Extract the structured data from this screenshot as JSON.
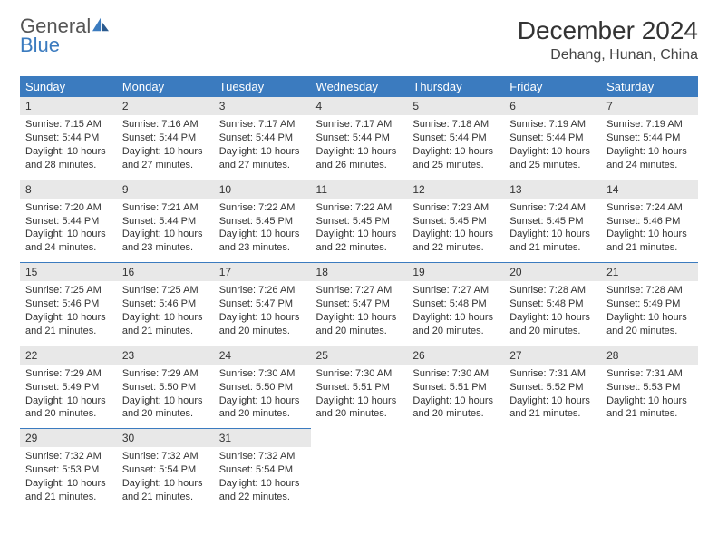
{
  "logo": {
    "text1": "General",
    "text2": "Blue"
  },
  "title": "December 2024",
  "location": "Dehang, Hunan, China",
  "colors": {
    "header_bg": "#3b7bbf",
    "header_fg": "#ffffff",
    "daynum_bg": "#e8e8e8",
    "row_border": "#3b7bbf",
    "logo_blue": "#3b7bbf",
    "logo_gray": "#555555"
  },
  "days_of_week": [
    "Sunday",
    "Monday",
    "Tuesday",
    "Wednesday",
    "Thursday",
    "Friday",
    "Saturday"
  ],
  "weeks": [
    [
      {
        "n": "1",
        "sr": "Sunrise: 7:15 AM",
        "ss": "Sunset: 5:44 PM",
        "d1": "Daylight: 10 hours",
        "d2": "and 28 minutes."
      },
      {
        "n": "2",
        "sr": "Sunrise: 7:16 AM",
        "ss": "Sunset: 5:44 PM",
        "d1": "Daylight: 10 hours",
        "d2": "and 27 minutes."
      },
      {
        "n": "3",
        "sr": "Sunrise: 7:17 AM",
        "ss": "Sunset: 5:44 PM",
        "d1": "Daylight: 10 hours",
        "d2": "and 27 minutes."
      },
      {
        "n": "4",
        "sr": "Sunrise: 7:17 AM",
        "ss": "Sunset: 5:44 PM",
        "d1": "Daylight: 10 hours",
        "d2": "and 26 minutes."
      },
      {
        "n": "5",
        "sr": "Sunrise: 7:18 AM",
        "ss": "Sunset: 5:44 PM",
        "d1": "Daylight: 10 hours",
        "d2": "and 25 minutes."
      },
      {
        "n": "6",
        "sr": "Sunrise: 7:19 AM",
        "ss": "Sunset: 5:44 PM",
        "d1": "Daylight: 10 hours",
        "d2": "and 25 minutes."
      },
      {
        "n": "7",
        "sr": "Sunrise: 7:19 AM",
        "ss": "Sunset: 5:44 PM",
        "d1": "Daylight: 10 hours",
        "d2": "and 24 minutes."
      }
    ],
    [
      {
        "n": "8",
        "sr": "Sunrise: 7:20 AM",
        "ss": "Sunset: 5:44 PM",
        "d1": "Daylight: 10 hours",
        "d2": "and 24 minutes."
      },
      {
        "n": "9",
        "sr": "Sunrise: 7:21 AM",
        "ss": "Sunset: 5:44 PM",
        "d1": "Daylight: 10 hours",
        "d2": "and 23 minutes."
      },
      {
        "n": "10",
        "sr": "Sunrise: 7:22 AM",
        "ss": "Sunset: 5:45 PM",
        "d1": "Daylight: 10 hours",
        "d2": "and 23 minutes."
      },
      {
        "n": "11",
        "sr": "Sunrise: 7:22 AM",
        "ss": "Sunset: 5:45 PM",
        "d1": "Daylight: 10 hours",
        "d2": "and 22 minutes."
      },
      {
        "n": "12",
        "sr": "Sunrise: 7:23 AM",
        "ss": "Sunset: 5:45 PM",
        "d1": "Daylight: 10 hours",
        "d2": "and 22 minutes."
      },
      {
        "n": "13",
        "sr": "Sunrise: 7:24 AM",
        "ss": "Sunset: 5:45 PM",
        "d1": "Daylight: 10 hours",
        "d2": "and 21 minutes."
      },
      {
        "n": "14",
        "sr": "Sunrise: 7:24 AM",
        "ss": "Sunset: 5:46 PM",
        "d1": "Daylight: 10 hours",
        "d2": "and 21 minutes."
      }
    ],
    [
      {
        "n": "15",
        "sr": "Sunrise: 7:25 AM",
        "ss": "Sunset: 5:46 PM",
        "d1": "Daylight: 10 hours",
        "d2": "and 21 minutes."
      },
      {
        "n": "16",
        "sr": "Sunrise: 7:25 AM",
        "ss": "Sunset: 5:46 PM",
        "d1": "Daylight: 10 hours",
        "d2": "and 21 minutes."
      },
      {
        "n": "17",
        "sr": "Sunrise: 7:26 AM",
        "ss": "Sunset: 5:47 PM",
        "d1": "Daylight: 10 hours",
        "d2": "and 20 minutes."
      },
      {
        "n": "18",
        "sr": "Sunrise: 7:27 AM",
        "ss": "Sunset: 5:47 PM",
        "d1": "Daylight: 10 hours",
        "d2": "and 20 minutes."
      },
      {
        "n": "19",
        "sr": "Sunrise: 7:27 AM",
        "ss": "Sunset: 5:48 PM",
        "d1": "Daylight: 10 hours",
        "d2": "and 20 minutes."
      },
      {
        "n": "20",
        "sr": "Sunrise: 7:28 AM",
        "ss": "Sunset: 5:48 PM",
        "d1": "Daylight: 10 hours",
        "d2": "and 20 minutes."
      },
      {
        "n": "21",
        "sr": "Sunrise: 7:28 AM",
        "ss": "Sunset: 5:49 PM",
        "d1": "Daylight: 10 hours",
        "d2": "and 20 minutes."
      }
    ],
    [
      {
        "n": "22",
        "sr": "Sunrise: 7:29 AM",
        "ss": "Sunset: 5:49 PM",
        "d1": "Daylight: 10 hours",
        "d2": "and 20 minutes."
      },
      {
        "n": "23",
        "sr": "Sunrise: 7:29 AM",
        "ss": "Sunset: 5:50 PM",
        "d1": "Daylight: 10 hours",
        "d2": "and 20 minutes."
      },
      {
        "n": "24",
        "sr": "Sunrise: 7:30 AM",
        "ss": "Sunset: 5:50 PM",
        "d1": "Daylight: 10 hours",
        "d2": "and 20 minutes."
      },
      {
        "n": "25",
        "sr": "Sunrise: 7:30 AM",
        "ss": "Sunset: 5:51 PM",
        "d1": "Daylight: 10 hours",
        "d2": "and 20 minutes."
      },
      {
        "n": "26",
        "sr": "Sunrise: 7:30 AM",
        "ss": "Sunset: 5:51 PM",
        "d1": "Daylight: 10 hours",
        "d2": "and 20 minutes."
      },
      {
        "n": "27",
        "sr": "Sunrise: 7:31 AM",
        "ss": "Sunset: 5:52 PM",
        "d1": "Daylight: 10 hours",
        "d2": "and 21 minutes."
      },
      {
        "n": "28",
        "sr": "Sunrise: 7:31 AM",
        "ss": "Sunset: 5:53 PM",
        "d1": "Daylight: 10 hours",
        "d2": "and 21 minutes."
      }
    ],
    [
      {
        "n": "29",
        "sr": "Sunrise: 7:32 AM",
        "ss": "Sunset: 5:53 PM",
        "d1": "Daylight: 10 hours",
        "d2": "and 21 minutes."
      },
      {
        "n": "30",
        "sr": "Sunrise: 7:32 AM",
        "ss": "Sunset: 5:54 PM",
        "d1": "Daylight: 10 hours",
        "d2": "and 21 minutes."
      },
      {
        "n": "31",
        "sr": "Sunrise: 7:32 AM",
        "ss": "Sunset: 5:54 PM",
        "d1": "Daylight: 10 hours",
        "d2": "and 22 minutes."
      },
      null,
      null,
      null,
      null
    ]
  ]
}
